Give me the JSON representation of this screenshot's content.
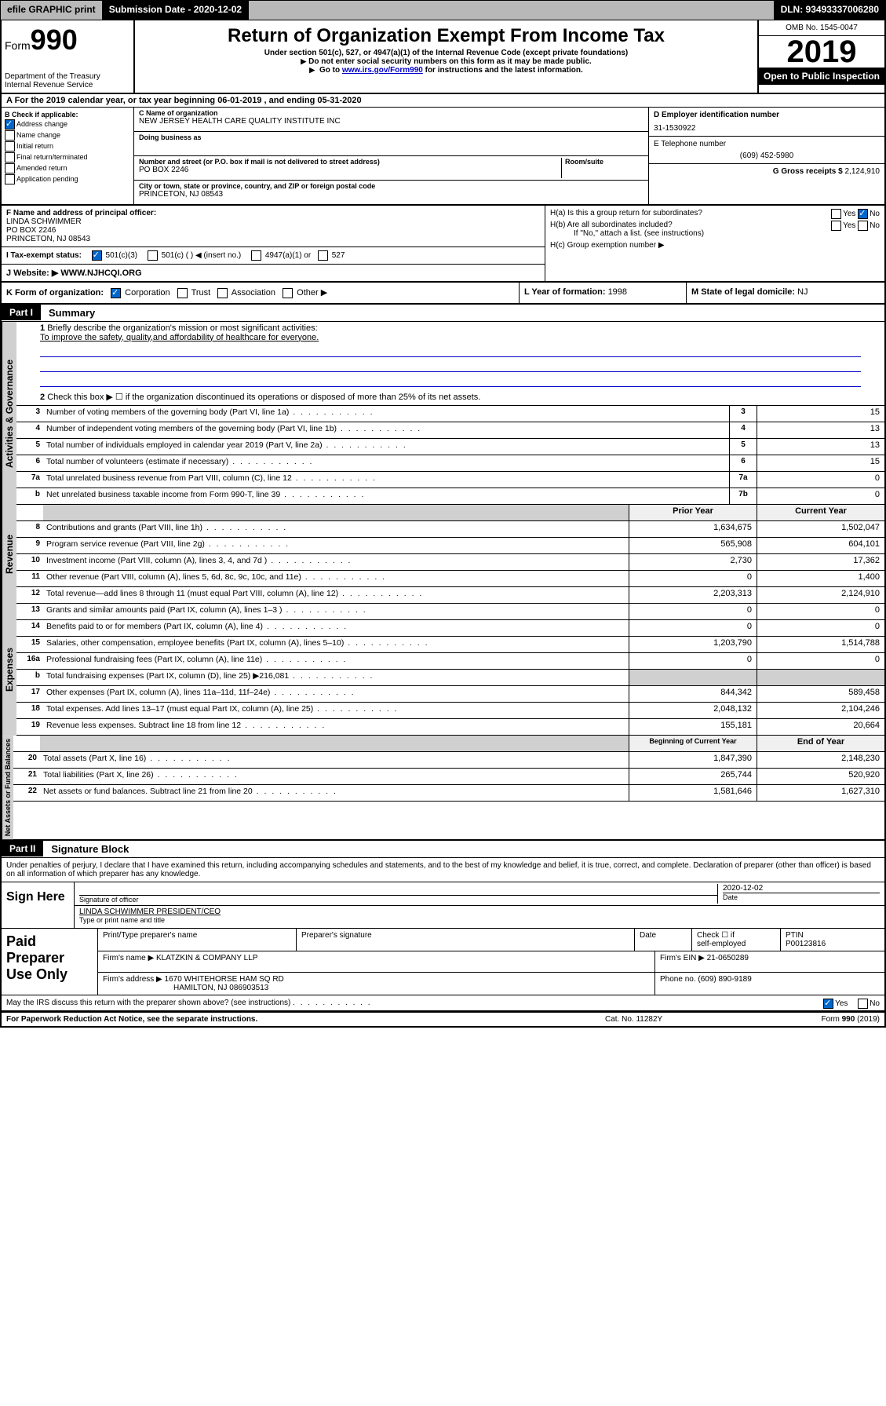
{
  "topbar": {
    "efile": "efile GRAPHIC print",
    "submission_label": "Submission Date - ",
    "submission_date": "2020-12-02",
    "dln": "DLN: 93493337006280"
  },
  "header": {
    "form_label": "Form",
    "form_number": "990",
    "dept": "Department of the Treasury\nInternal Revenue Service",
    "title": "Return of Organization Exempt From Income Tax",
    "subtitle": "Under section 501(c), 527, or 4947(a)(1) of the Internal Revenue Code (except private foundations)",
    "note1": "Do not enter social security numbers on this form as it may be made public.",
    "note2_prefix": "Go to ",
    "note2_link": "www.irs.gov/Form990",
    "note2_suffix": " for instructions and the latest information.",
    "omb": "OMB No. 1545-0047",
    "year": "2019",
    "public": "Open to Public Inspection"
  },
  "lineA": "A For the 2019 calendar year, or tax year beginning 06-01-2019    , and ending 05-31-2020",
  "sectionB": {
    "label": "B Check if applicable:",
    "items": [
      "Address change",
      "Name change",
      "Initial return",
      "Final return/terminated",
      "Amended return",
      "Application pending"
    ]
  },
  "sectionC": {
    "name_label": "C Name of organization",
    "name": "NEW JERSEY HEALTH CARE QUALITY INSTITUTE INC",
    "dba_label": "Doing business as",
    "dba": "",
    "addr_label": "Number and street (or P.O. box if mail is not delivered to street address)",
    "room_label": "Room/suite",
    "addr": "PO BOX 2246",
    "city_label": "City or town, state or province, country, and ZIP or foreign postal code",
    "city": "PRINCETON, NJ  08543"
  },
  "sectionDE": {
    "d_label": "D Employer identification number",
    "d_val": "31-1530922",
    "e_label": "E Telephone number",
    "e_val": "(609) 452-5980",
    "g_label": "G Gross receipts $ ",
    "g_val": "2,124,910"
  },
  "sectionF": {
    "label": "F Name and address of principal officer:",
    "name": "LINDA SCHWIMMER",
    "addr1": "PO BOX 2246",
    "addr2": "PRINCETON, NJ  08543"
  },
  "sectionH": {
    "ha": "H(a)  Is this a group return for subordinates?",
    "hb": "H(b)  Are all subordinates included?",
    "hb_note": "If \"No,\" attach a list. (see instructions)",
    "hc": "H(c)  Group exemption number ▶"
  },
  "sectionI": {
    "label": "I   Tax-exempt status:",
    "opts": [
      "501(c)(3)",
      "501(c) (  ) ◀ (insert no.)",
      "4947(a)(1) or",
      "527"
    ]
  },
  "sectionJ": {
    "label": "J   Website: ▶",
    "val": "WWW.NJHCQI.ORG"
  },
  "sectionK": "K Form of organization:",
  "k_opts": [
    "Corporation",
    "Trust",
    "Association",
    "Other ▶"
  ],
  "sectionL": {
    "label": "L Year of formation: ",
    "val": "1998"
  },
  "sectionM": {
    "label": "M State of legal domicile: ",
    "val": "NJ"
  },
  "part1": {
    "header": "Part I",
    "title": "Summary",
    "q1_label": "1",
    "q1": "Briefly describe the organization's mission or most significant activities:",
    "q1_val": "To improve the safety, quality,and affordability of healthcare for everyone.",
    "q2_label": "2",
    "q2": "Check this box ▶ ☐ if the organization discontinued its operations or disposed of more than 25% of its net assets."
  },
  "vtabs": {
    "gov": "Activities & Governance",
    "rev": "Revenue",
    "exp": "Expenses",
    "net": "Net Assets or Fund Balances"
  },
  "rows_gov": [
    {
      "n": "3",
      "d": "Number of voting members of the governing body (Part VI, line 1a)",
      "box": "3",
      "v": "15"
    },
    {
      "n": "4",
      "d": "Number of independent voting members of the governing body (Part VI, line 1b)",
      "box": "4",
      "v": "13"
    },
    {
      "n": "5",
      "d": "Total number of individuals employed in calendar year 2019 (Part V, line 2a)",
      "box": "5",
      "v": "13"
    },
    {
      "n": "6",
      "d": "Total number of volunteers (estimate if necessary)",
      "box": "6",
      "v": "15"
    },
    {
      "n": "7a",
      "d": "Total unrelated business revenue from Part VIII, column (C), line 12",
      "box": "7a",
      "v": "0"
    },
    {
      "n": "b",
      "d": "Net unrelated business taxable income from Form 990-T, line 39",
      "box": "7b",
      "v": "0"
    }
  ],
  "col_headers": {
    "prior": "Prior Year",
    "current": "Current Year",
    "bcy": "Beginning of Current Year",
    "eoy": "End of Year"
  },
  "rows_rev": [
    {
      "n": "8",
      "d": "Contributions and grants (Part VIII, line 1h)",
      "p": "1,634,675",
      "c": "1,502,047"
    },
    {
      "n": "9",
      "d": "Program service revenue (Part VIII, line 2g)",
      "p": "565,908",
      "c": "604,101"
    },
    {
      "n": "10",
      "d": "Investment income (Part VIII, column (A), lines 3, 4, and 7d )",
      "p": "2,730",
      "c": "17,362"
    },
    {
      "n": "11",
      "d": "Other revenue (Part VIII, column (A), lines 5, 6d, 8c, 9c, 10c, and 11e)",
      "p": "0",
      "c": "1,400"
    },
    {
      "n": "12",
      "d": "Total revenue—add lines 8 through 11 (must equal Part VIII, column (A), line 12)",
      "p": "2,203,313",
      "c": "2,124,910"
    }
  ],
  "rows_exp": [
    {
      "n": "13",
      "d": "Grants and similar amounts paid (Part IX, column (A), lines 1–3 )",
      "p": "0",
      "c": "0"
    },
    {
      "n": "14",
      "d": "Benefits paid to or for members (Part IX, column (A), line 4)",
      "p": "0",
      "c": "0"
    },
    {
      "n": "15",
      "d": "Salaries, other compensation, employee benefits (Part IX, column (A), lines 5–10)",
      "p": "1,203,790",
      "c": "1,514,788"
    },
    {
      "n": "16a",
      "d": "Professional fundraising fees (Part IX, column (A), line 11e)",
      "p": "0",
      "c": "0"
    },
    {
      "n": "b",
      "d": "Total fundraising expenses (Part IX, column (D), line 25) ▶216,081",
      "p": "",
      "c": "",
      "grey": true
    },
    {
      "n": "17",
      "d": "Other expenses (Part IX, column (A), lines 11a–11d, 11f–24e)",
      "p": "844,342",
      "c": "589,458"
    },
    {
      "n": "18",
      "d": "Total expenses. Add lines 13–17 (must equal Part IX, column (A), line 25)",
      "p": "2,048,132",
      "c": "2,104,246"
    },
    {
      "n": "19",
      "d": "Revenue less expenses. Subtract line 18 from line 12",
      "p": "155,181",
      "c": "20,664"
    }
  ],
  "rows_net": [
    {
      "n": "20",
      "d": "Total assets (Part X, line 16)",
      "p": "1,847,390",
      "c": "2,148,230"
    },
    {
      "n": "21",
      "d": "Total liabilities (Part X, line 26)",
      "p": "265,744",
      "c": "520,920"
    },
    {
      "n": "22",
      "d": "Net assets or fund balances. Subtract line 21 from line 20",
      "p": "1,581,646",
      "c": "1,627,310"
    }
  ],
  "part2": {
    "header": "Part II",
    "title": "Signature Block",
    "text": "Under penalties of perjury, I declare that I have examined this return, including accompanying schedules and statements, and to the best of my knowledge and belief, it is true, correct, and complete. Declaration of preparer (other than officer) is based on all information of which preparer has any knowledge."
  },
  "sign": {
    "label": "Sign Here",
    "sig_label": "Signature of officer",
    "date_label": "Date",
    "date": "2020-12-02",
    "name": "LINDA SCHWIMMER  PRESIDENT/CEO",
    "name_label": "Type or print name and title"
  },
  "paid": {
    "label": "Paid Preparer Use Only",
    "h1": "Print/Type preparer's name",
    "h2": "Preparer's signature",
    "h3": "Date",
    "h4_a": "Check ☐ if",
    "h4_b": "self-employed",
    "h5": "PTIN",
    "ptin": "P00123816",
    "firm_name_label": "Firm's name     ▶",
    "firm_name": "KLATZKIN & COMPANY LLP",
    "firm_ein_label": "Firm's EIN ▶",
    "firm_ein": "21-0650289",
    "firm_addr_label": "Firm's address ▶",
    "firm_addr1": "1670 WHITEHORSE HAM SQ RD",
    "firm_addr2": "HAMILTON, NJ  086903513",
    "phone_label": "Phone no. ",
    "phone": "(609) 890-9189"
  },
  "discuss": "May the IRS discuss this return with the preparer shown above? (see instructions)",
  "footer": {
    "left": "For Paperwork Reduction Act Notice, see the separate instructions.",
    "mid": "Cat. No. 11282Y",
    "right": "Form 990 (2019)"
  },
  "yes": "Yes",
  "no": "No"
}
